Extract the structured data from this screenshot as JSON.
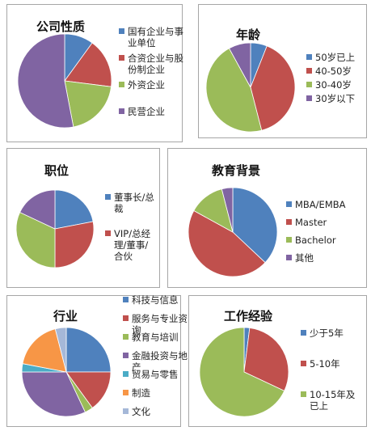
{
  "chart_data": [
    {
      "type": "pie",
      "title": "公司性质",
      "categories": [
        "国有企业与事业单位",
        "合资企业与股份制企业",
        "外资企业",
        "民营企业"
      ],
      "values": [
        10,
        17,
        20,
        53
      ],
      "colors": [
        "#4F81BD",
        "#C0504D",
        "#9BBB59",
        "#8064A2"
      ]
    },
    {
      "type": "pie",
      "title": "年龄",
      "categories": [
        "50岁已上",
        "40-50岁",
        "30-40岁",
        "30岁以下"
      ],
      "values": [
        6,
        40,
        46,
        8
      ],
      "colors": [
        "#4F81BD",
        "#C0504D",
        "#9BBB59",
        "#8064A2"
      ]
    },
    {
      "type": "pie",
      "title": "职位",
      "categories": [
        "董事长/总裁",
        "VIP/总经理/董事/合伙",
        null,
        null
      ],
      "values": [
        22,
        28,
        32,
        18
      ],
      "colors": [
        "#4F81BD",
        "#C0504D",
        "#9BBB59",
        "#8064A2"
      ]
    },
    {
      "type": "pie",
      "title": "教育背景",
      "categories": [
        "MBA/EMBA",
        "Master",
        "Bachelor",
        "其他"
      ],
      "values": [
        37,
        46,
        13,
        4
      ],
      "colors": [
        "#4F81BD",
        "#C0504D",
        "#9BBB59",
        "#8064A2"
      ]
    },
    {
      "type": "pie",
      "title": "行业",
      "categories": [
        "科技与信息",
        "服务与专业资询",
        "教育与培训",
        "金融投资与地产",
        "贸易与零售",
        "制造",
        "文化"
      ],
      "values": [
        25,
        15,
        3,
        32,
        3,
        18,
        4
      ],
      "colors": [
        "#4F81BD",
        "#C0504D",
        "#9BBB59",
        "#8064A2",
        "#4BACC6",
        "#F79646",
        "#A5B8D8"
      ]
    },
    {
      "type": "pie",
      "title": "工作经验",
      "categories": [
        "少于5年",
        "5-10年",
        "10-15年及已上"
      ],
      "values": [
        2,
        30,
        68
      ],
      "colors": [
        "#4F81BD",
        "#C0504D",
        "#9BBB59"
      ]
    }
  ]
}
